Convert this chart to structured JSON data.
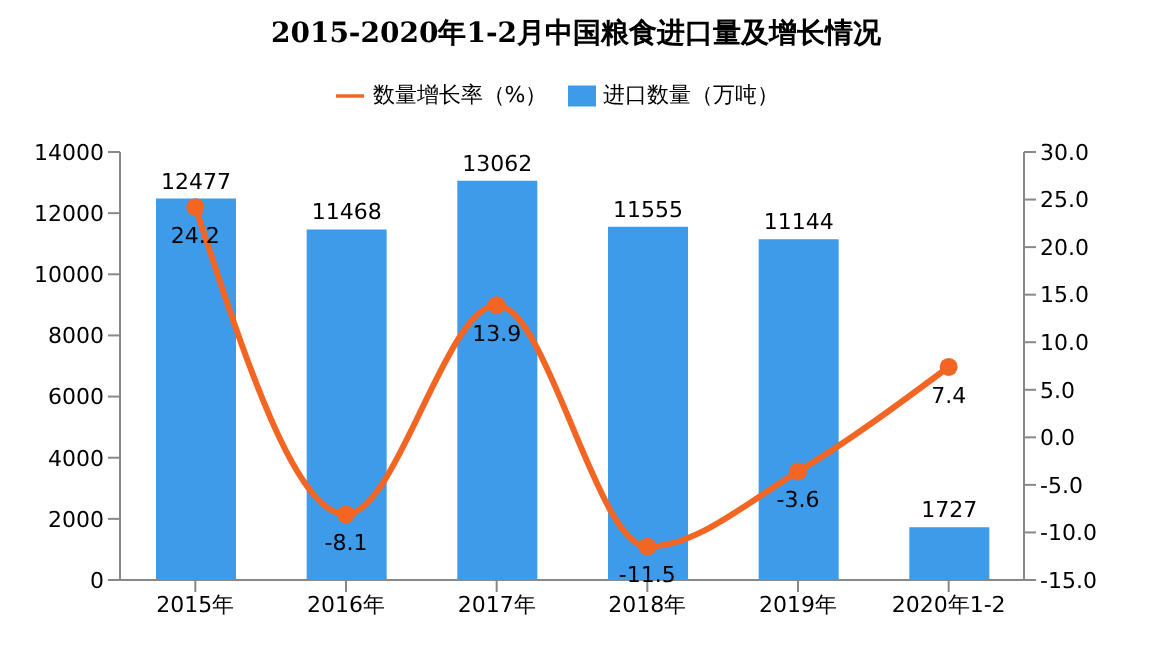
{
  "chart_data": {
    "type": "bar",
    "title": "2015-2020年1-2月中国粮食进口量及增长情况",
    "categories": [
      "2015年",
      "2016年",
      "2017年",
      "2018年",
      "2019年",
      "2020年1-2"
    ],
    "series": [
      {
        "name": "进口数量（万吨）",
        "color": "#3d9be9",
        "values": [
          12477,
          11468,
          13062,
          11555,
          11144,
          1727
        ]
      },
      {
        "name": "数量增长率（%）",
        "type": "line",
        "axis": "y2",
        "color": "#f26522",
        "values": [
          24.2,
          -8.1,
          13.9,
          -11.5,
          -3.6,
          7.4
        ]
      }
    ],
    "ylim": [
      0,
      14000
    ],
    "yticks": [
      0,
      2000,
      4000,
      6000,
      8000,
      10000,
      12000,
      14000
    ],
    "y2lim": [
      -15,
      30
    ],
    "y2ticks": [
      {
        "value": -15,
        "label": "-15.0"
      },
      {
        "value": -10,
        "label": "-10.0"
      },
      {
        "value": -5,
        "label": "-5.0"
      },
      {
        "value": 0,
        "label": "0.0"
      },
      {
        "value": 5,
        "label": "5.0"
      },
      {
        "value": 10,
        "label": "10.0"
      },
      {
        "value": 15,
        "label": "15.0"
      },
      {
        "value": 20,
        "label": "20.0"
      },
      {
        "value": 25,
        "label": "25.0"
      },
      {
        "value": 30,
        "label": "30.0"
      }
    ],
    "data_labels": true,
    "legend": "top",
    "grid": false,
    "marker": "circle"
  }
}
